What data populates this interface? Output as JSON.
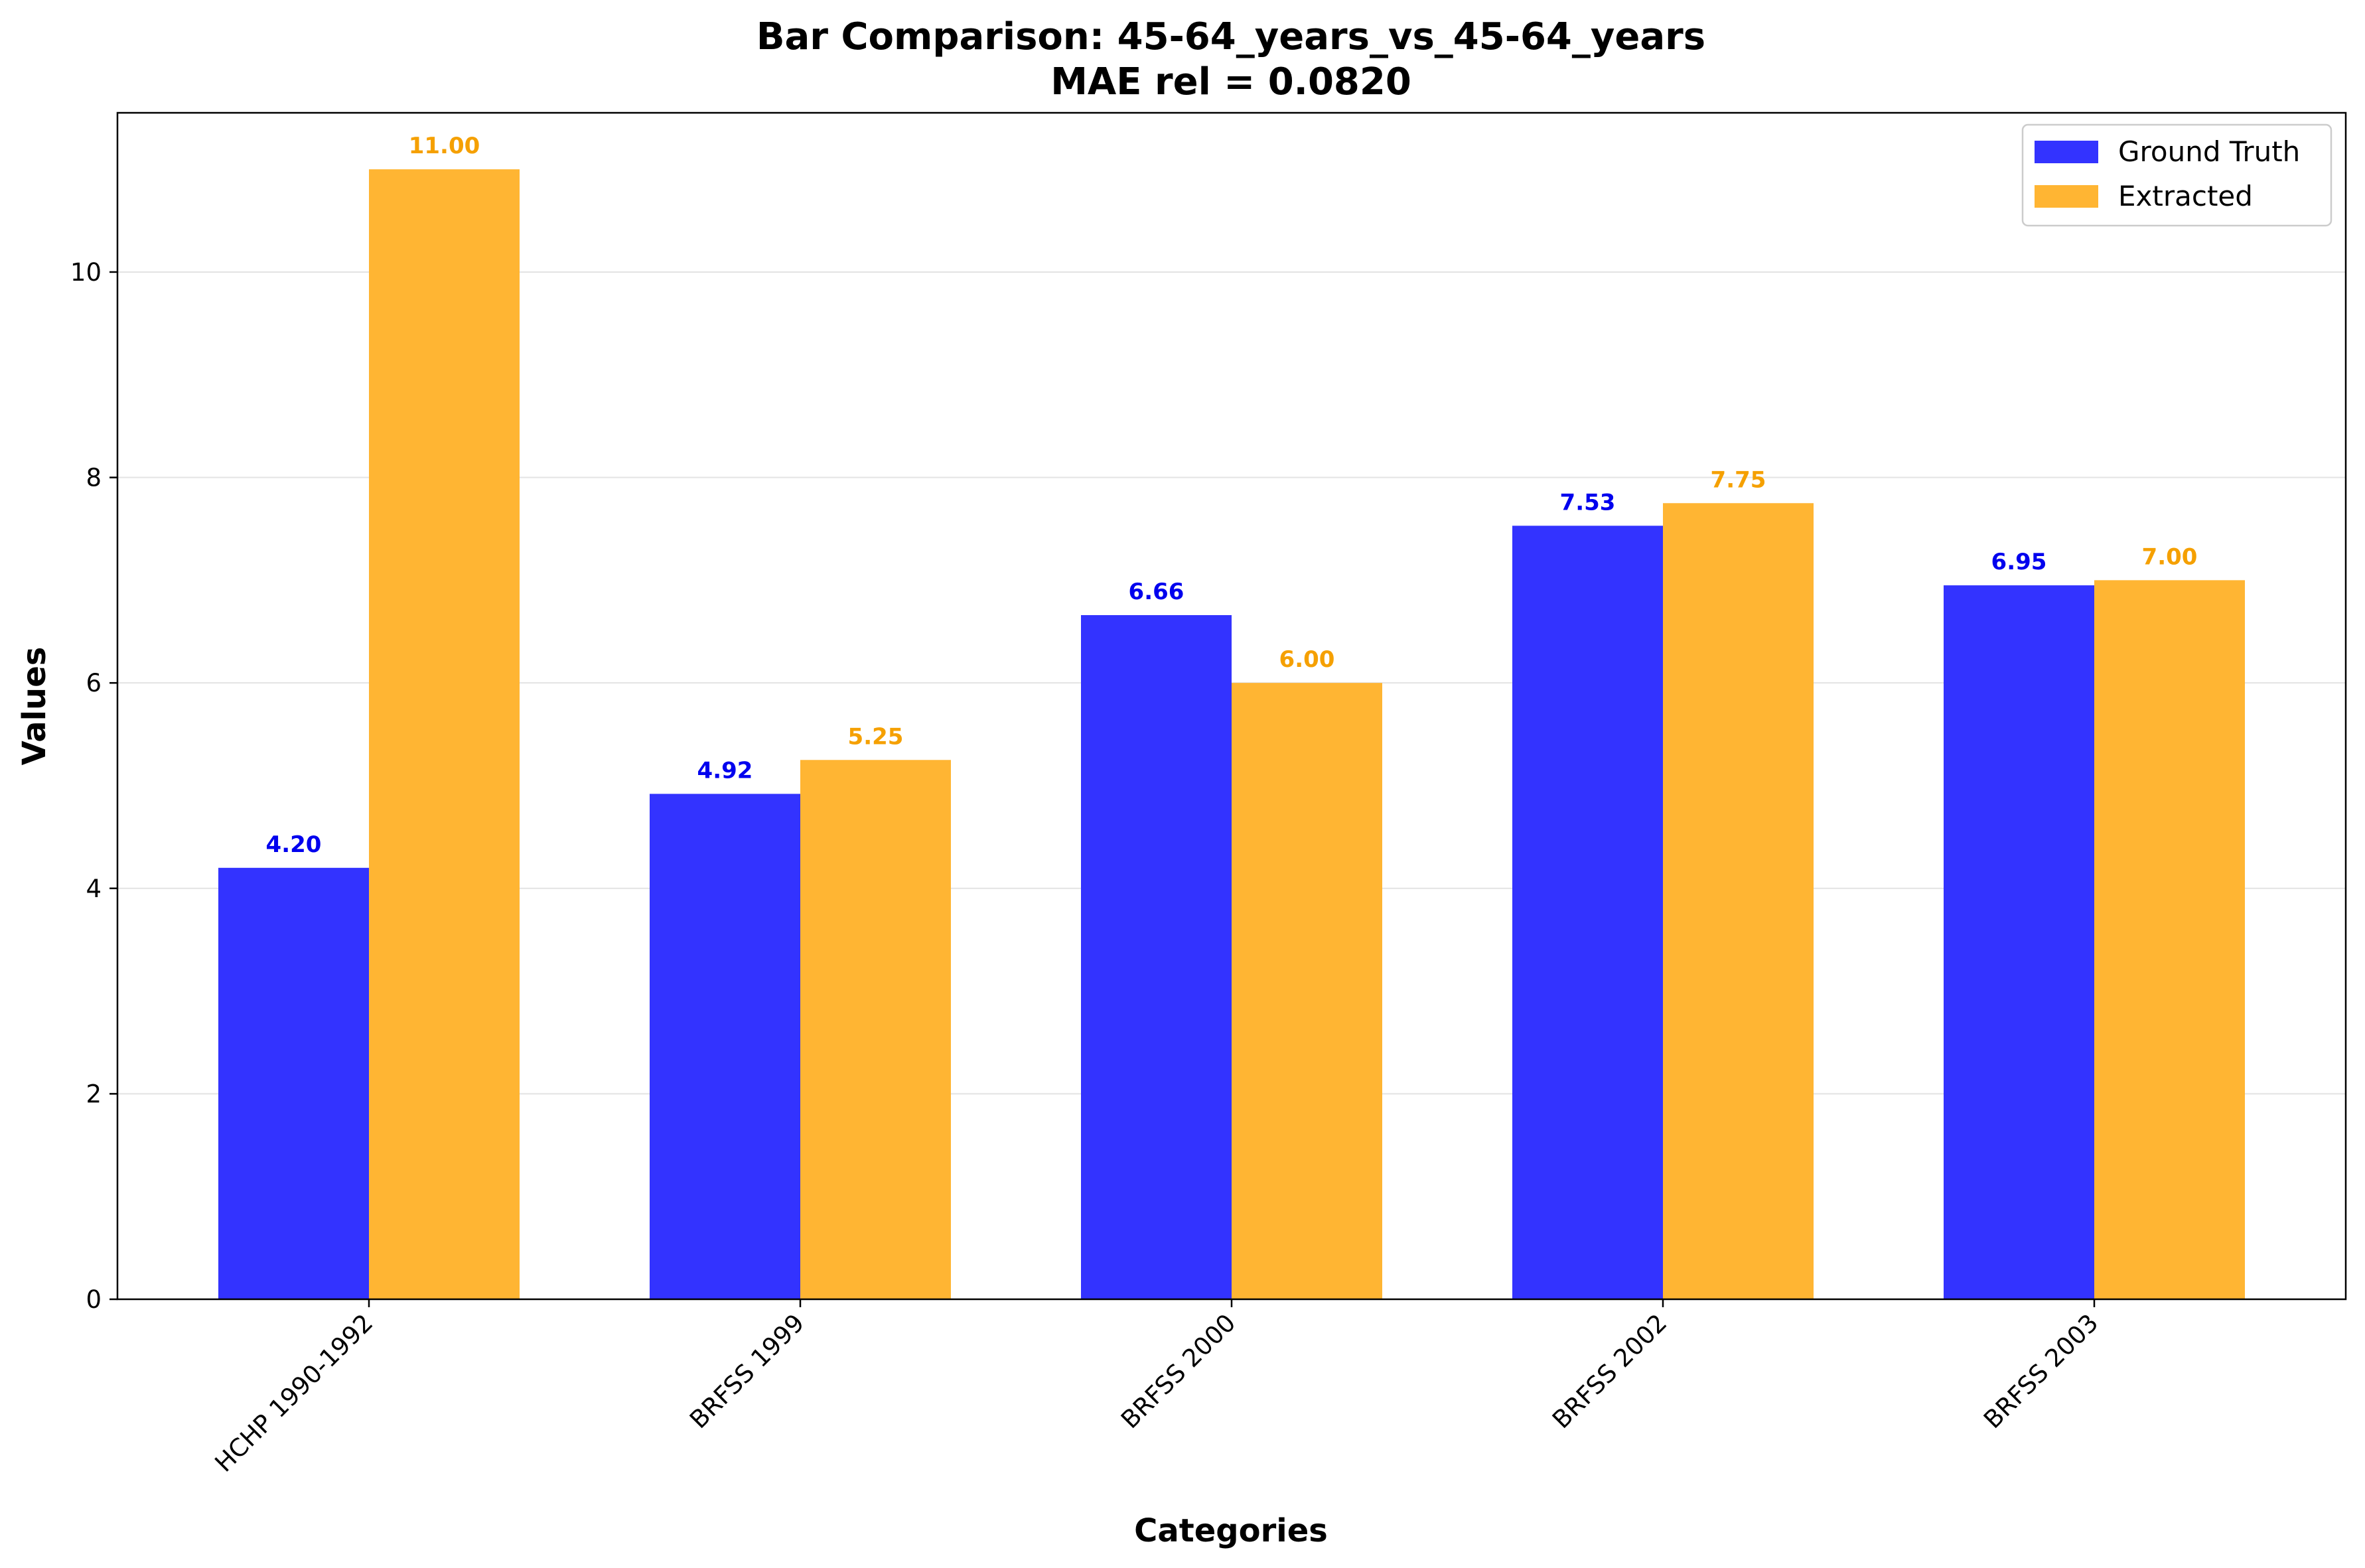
{
  "chart_data": {
    "type": "bar",
    "title_line1": "Bar Comparison: 45-64_years_vs_45-64_years",
    "title_line2": "MAE rel = 0.0820",
    "xlabel": "Categories",
    "ylabel": "Values",
    "categories": [
      "HCHP 1990-1992",
      "BRFSS 1999",
      "BRFSS 2000",
      "BRFSS 2002",
      "BRFSS 2003"
    ],
    "series": [
      {
        "name": "Ground Truth",
        "color": "#3333ff",
        "label_color": "#0000ee",
        "values": [
          4.2,
          4.92,
          6.66,
          7.53,
          6.95
        ],
        "value_labels": [
          "4.20",
          "4.92",
          "6.66",
          "7.53",
          "6.95"
        ]
      },
      {
        "name": "Extracted",
        "color": "#ffb533",
        "label_color": "#f5a000",
        "values": [
          11.0,
          5.25,
          6.0,
          7.75,
          7.0
        ],
        "value_labels": [
          "11.00",
          "5.25",
          "6.00",
          "7.75",
          "7.00"
        ]
      }
    ],
    "ylim": [
      0,
      11.55
    ],
    "yticks": [
      0,
      2,
      4,
      6,
      8,
      10
    ],
    "ytick_labels": [
      "0",
      "2",
      "4",
      "6",
      "8",
      "10"
    ],
    "grid": "horizontal",
    "legend_position": "top-right"
  }
}
